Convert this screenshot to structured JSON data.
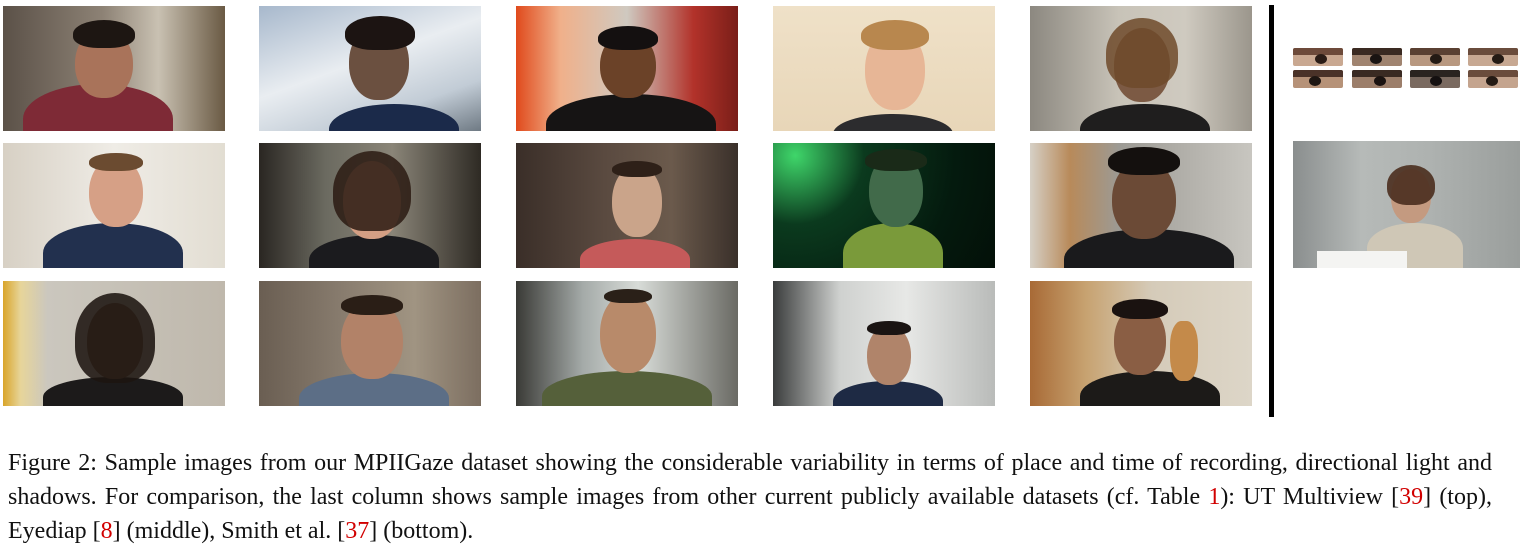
{
  "figure": {
    "caption": {
      "label": "Figure 2:",
      "text_1": "Sample images from our MPIIGaze dataset showing the considerable variability in terms of place and time of recording, directional light and shadows. For comparison, the last column shows sample images from other current publicly available datasets (cf. Table ",
      "ref_table": "1",
      "text_2": "): UT Multiview [",
      "ref_ut": "39",
      "text_3": "] (top), Eyediap [",
      "ref_eyediap": "8",
      "text_4": "] (middle), Smith et al. [",
      "ref_smith": "37",
      "text_5": "] (bottom)."
    },
    "ref_color": "#d10000"
  }
}
